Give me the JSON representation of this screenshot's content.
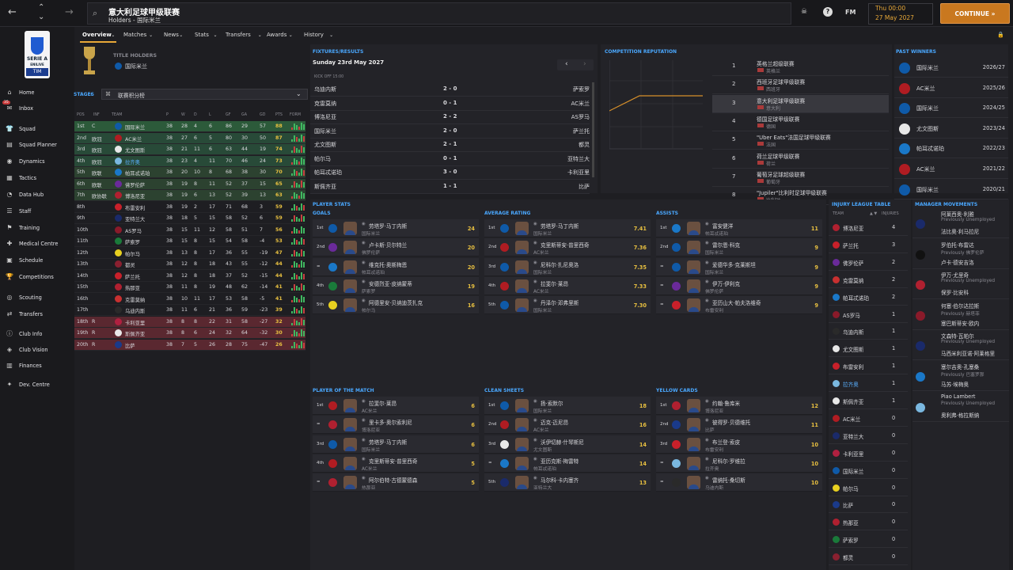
{
  "topbar": {
    "back_icon": "←",
    "forward_icon": "→",
    "up_icon": "⌃",
    "down_icon": "⌄",
    "title": "意大利足球甲级联赛",
    "subtitle": "Holders - 国际米兰",
    "fm_label": "FM",
    "date_line1": "Thu 00:00",
    "date_line2": "27 May 2027",
    "continue_label": "CONTINUE »"
  },
  "sidebar": {
    "logo_text": "SERIE A",
    "logo_sub": "ENILIVE",
    "logo_sponsor": "TIM",
    "items": [
      {
        "label": "Home",
        "icon": "⌂"
      },
      {
        "label": "Inbox",
        "icon": "✉",
        "badge": "35"
      },
      {
        "label": "Squad",
        "icon": "👕"
      },
      {
        "label": "Squad Planner",
        "icon": "▤"
      },
      {
        "label": "Dynamics",
        "icon": "◉"
      },
      {
        "label": "Tactics",
        "icon": "▦"
      },
      {
        "label": "Data Hub",
        "icon": "◔"
      },
      {
        "label": "Staff",
        "icon": "☰"
      },
      {
        "label": "Training",
        "icon": "⚑"
      },
      {
        "label": "Medical Centre",
        "icon": "✚"
      },
      {
        "label": "Schedule",
        "icon": "▣"
      },
      {
        "label": "Competitions",
        "icon": "🏆"
      },
      {
        "label": "Scouting",
        "icon": "◎"
      },
      {
        "label": "Transfers",
        "icon": "⇄"
      },
      {
        "label": "Club Info",
        "icon": "ⓘ"
      },
      {
        "label": "Club Vision",
        "icon": "◈"
      },
      {
        "label": "Finances",
        "icon": "▥"
      },
      {
        "label": "Dev. Centre",
        "icon": "✦"
      }
    ]
  },
  "tabs": [
    "Overview",
    "Matches",
    "News",
    "Stats",
    "Transfers",
    "Awards",
    "History"
  ],
  "holders": {
    "label": "TITLE HOLDERS",
    "team": "国际米兰"
  },
  "stages": {
    "label": "STAGES",
    "dropdown": "联赛积分榜"
  },
  "table": {
    "headers": [
      "POS",
      "INF",
      "",
      "TEAM",
      "P",
      "W",
      "D",
      "L",
      "GF",
      "GA",
      "GD",
      "PTS",
      "FORM"
    ],
    "rows": [
      [
        "1st",
        "C",
        "国际米兰",
        "38",
        "28",
        "4",
        "6",
        "86",
        "29",
        "57",
        "88",
        "#0f5aa8"
      ],
      [
        "2nd",
        "欧冠",
        "AC米兰",
        "38",
        "27",
        "6",
        "5",
        "80",
        "30",
        "50",
        "87",
        "#b01c22"
      ],
      [
        "3rd",
        "欧冠",
        "尤文图斯",
        "38",
        "21",
        "11",
        "6",
        "63",
        "44",
        "19",
        "74",
        "#e8e8e8"
      ],
      [
        "4th",
        "欧冠",
        "拉齐奥",
        "38",
        "23",
        "4",
        "11",
        "70",
        "46",
        "24",
        "73",
        "#7ab8e0"
      ],
      [
        "5th",
        "欧联",
        "帕耳忒诺珀",
        "38",
        "20",
        "10",
        "8",
        "68",
        "38",
        "30",
        "70",
        "#1a78c8"
      ],
      [
        "6th",
        "欧联",
        "佛罗伦萨",
        "38",
        "19",
        "8",
        "11",
        "52",
        "37",
        "15",
        "65",
        "#6a2a9a"
      ],
      [
        "7th",
        "欧协联",
        "博洛尼亚",
        "38",
        "19",
        "6",
        "13",
        "52",
        "39",
        "13",
        "63",
        "#b02030"
      ],
      [
        "8th",
        "",
        "布雷安利",
        "38",
        "19",
        "2",
        "17",
        "71",
        "68",
        "3",
        "59",
        "#c8202a"
      ],
      [
        "9th",
        "",
        "亚特兰大",
        "38",
        "18",
        "5",
        "15",
        "58",
        "52",
        "6",
        "59",
        "#1a2a6a"
      ],
      [
        "10th",
        "",
        "AS罗马",
        "38",
        "15",
        "11",
        "12",
        "58",
        "51",
        "7",
        "56",
        "#8a1a2a"
      ],
      [
        "11th",
        "",
        "萨索罗",
        "38",
        "15",
        "8",
        "15",
        "54",
        "58",
        "-4",
        "53",
        "#1a7a3a"
      ],
      [
        "12th",
        "",
        "帕尔马",
        "38",
        "13",
        "8",
        "17",
        "36",
        "55",
        "-19",
        "47",
        "#e8d020"
      ],
      [
        "13th",
        "",
        "都灵",
        "38",
        "12",
        "8",
        "18",
        "43",
        "55",
        "-12",
        "44",
        "#8a2030"
      ],
      [
        "14th",
        "",
        "萨兰托",
        "38",
        "12",
        "8",
        "18",
        "37",
        "52",
        "-15",
        "44",
        "#c8202a"
      ],
      [
        "15th",
        "",
        "热那亚",
        "38",
        "11",
        "8",
        "19",
        "48",
        "62",
        "-14",
        "41",
        "#b02030"
      ],
      [
        "16th",
        "",
        "克雷莫纳",
        "38",
        "10",
        "11",
        "17",
        "53",
        "58",
        "-5",
        "41",
        "#c83030"
      ],
      [
        "17th",
        "",
        "乌迪内斯",
        "38",
        "11",
        "6",
        "21",
        "36",
        "59",
        "-23",
        "39",
        "#2a2a2a"
      ],
      [
        "18th",
        "R",
        "卡利亚里",
        "38",
        "8",
        "8",
        "22",
        "31",
        "58",
        "-27",
        "32",
        "#b02040"
      ],
      [
        "19th",
        "R",
        "斯佩齐亚",
        "38",
        "8",
        "6",
        "24",
        "32",
        "64",
        "-32",
        "30",
        "#e8e8e8"
      ],
      [
        "20th",
        "R",
        "比萨",
        "38",
        "7",
        "5",
        "26",
        "28",
        "75",
        "-47",
        "26",
        "#1a3a8a"
      ]
    ]
  },
  "fixtures": {
    "label": "FIXTURES/RESULTS",
    "date": "Sunday 23rd May 2027",
    "kickoff": "KICK OFF 15:00",
    "rows": [
      [
        "乌迪内斯",
        "2 - 0",
        "萨索罗"
      ],
      [
        "克雷莫纳",
        "0 - 1",
        "AC米兰"
      ],
      [
        "博洛尼亚",
        "2 - 2",
        "AS罗马"
      ],
      [
        "国际米兰",
        "2 - 0",
        "萨兰托"
      ],
      [
        "尤文图斯",
        "2 - 1",
        "都灵"
      ],
      [
        "帕尔马",
        "0 - 1",
        "亚特兰大"
      ],
      [
        "帕耳忒诺珀",
        "3 - 0",
        "卡利亚里"
      ],
      [
        "斯佩齐亚",
        "1 - 1",
        "比萨"
      ]
    ]
  },
  "reputation": {
    "label": "COMPETITION REPUTATION",
    "rows": [
      [
        "1",
        "英格兰超级联赛",
        "英格兰"
      ],
      [
        "2",
        "西班牙足球甲级联赛",
        "西班牙"
      ],
      [
        "3",
        "意大利足球甲级联赛",
        "意大利"
      ],
      [
        "4",
        "德国足球甲级联赛",
        "德国"
      ],
      [
        "5",
        "\"Uber Eats\"法国足球甲级联赛",
        "法国"
      ],
      [
        "6",
        "荷兰足球甲级联赛",
        "荷兰"
      ],
      [
        "7",
        "葡萄牙足球超级联赛",
        "葡萄牙"
      ],
      [
        "8",
        "\"Jupiler\"比利时足球甲级联赛",
        "比利时"
      ]
    ]
  },
  "past_winners": {
    "label": "PAST WINNERS",
    "rows": [
      [
        "国际米兰",
        "2026/27",
        "#0f5aa8"
      ],
      [
        "AC米兰",
        "2025/26",
        "#b01c22"
      ],
      [
        "国际米兰",
        "2024/25",
        "#0f5aa8"
      ],
      [
        "尤文图斯",
        "2023/24",
        "#e8e8e8"
      ],
      [
        "帕耳忒诺珀",
        "2022/23",
        "#1a78c8"
      ],
      [
        "AC米兰",
        "2021/22",
        "#b01c22"
      ],
      [
        "国际米兰",
        "2020/21",
        "#0f5aa8"
      ]
    ]
  },
  "player_stats_label": "PLAYER STATS",
  "goals": {
    "label": "GOALS",
    "rows": [
      [
        "1st",
        "劳塔罗·马丁内斯",
        "国际米兰",
        "24",
        "#0f5aa8"
      ],
      [
        "2nd",
        "卢卡斯·贝尔特兰",
        "佛罗伦萨",
        "20",
        "#6a2a9a"
      ],
      [
        "=",
        "维克托·奥斯梅恩",
        "帕耳忒诺珀",
        "20",
        "#1a78c8"
      ],
      [
        "4th",
        "安德烈亚·皮纳蒙蒂",
        "萨索罗",
        "19",
        "#1a7a3a"
      ],
      [
        "5th",
        "阿德里安·贝纳迪茨扎克",
        "帕尔马",
        "16",
        "#e8d020"
      ]
    ]
  },
  "avg_rating": {
    "label": "AVERAGE RATING",
    "rows": [
      [
        "1st",
        "劳塔罗·马丁内斯",
        "国际米兰",
        "7.41",
        "#0f5aa8"
      ],
      [
        "2nd",
        "克里斯蒂安·普里西奇",
        "AC米兰",
        "7.36",
        "#b01c22"
      ],
      [
        "3rd",
        "尼科尔·扎尼奥洛",
        "国际米兰",
        "7.35",
        "#0f5aa8"
      ],
      [
        "4th",
        "拉斐尔·莱昂",
        "AC米兰",
        "7.33",
        "#b01c22"
      ],
      [
        "5th",
        "丹泽尔·邓弗里斯",
        "国际米兰",
        "7.30",
        "#0f5aa8"
      ]
    ]
  },
  "assists": {
    "label": "ASSISTS",
    "rows": [
      [
        "1st",
        "富安健洋",
        "帕耳忒诺珀",
        "11",
        "#1a78c8"
      ],
      [
        "2nd",
        "雷尔恩·科克",
        "国际米兰",
        "9",
        "#0f5aa8"
      ],
      [
        "=",
        "爱德华多·克莱斯坦",
        "国际米兰",
        "9",
        "#0f5aa8"
      ],
      [
        "=",
        "伊万·伊利克",
        "佛罗伦萨",
        "9",
        "#6a2a9a"
      ],
      [
        "=",
        "亚历山大·帕夫洛维奇",
        "布雷安利",
        "9",
        "#c8202a"
      ]
    ]
  },
  "potm": {
    "label": "PLAYER OF THE MATCH",
    "rows": [
      [
        "1st",
        "拉斐尔·莱昂",
        "AC米兰",
        "6",
        "#b01c22"
      ],
      [
        "=",
        "里卡多·奥尔索利尼",
        "博洛尼亚",
        "6",
        "#b02030"
      ],
      [
        "3rd",
        "劳塔罗·马丁内斯",
        "国际米兰",
        "6",
        "#0f5aa8"
      ],
      [
        "4th",
        "克里斯蒂安·普里西奇",
        "AC米兰",
        "5",
        "#b01c22"
      ],
      [
        "=",
        "阿尔伯特·古德蒙德森",
        "热那亚",
        "5",
        "#b02030"
      ]
    ]
  },
  "clean_sheets": {
    "label": "CLEAN SHEETS",
    "rows": [
      [
        "1st",
        "扬·索默尔",
        "国际米兰",
        "18",
        "#0f5aa8"
      ],
      [
        "2nd",
        "迈克·迈尼昂",
        "AC米兰",
        "16",
        "#b01c22"
      ],
      [
        "3rd",
        "沃伊切赫·什琴斯尼",
        "尤文图斯",
        "14",
        "#e8e8e8"
      ],
      [
        "=",
        "亚历克斯·梅雷特",
        "帕耳忒诺珀",
        "14",
        "#1a78c8"
      ],
      [
        "5th",
        "马尔科·卡内塞齐",
        "亚特兰大",
        "13",
        "#1a2a6a"
      ]
    ]
  },
  "yellow_cards": {
    "label": "YELLOW CARDS",
    "rows": [
      [
        "1st",
        "约翰·鲁库米",
        "博洛尼亚",
        "12",
        "#b02030"
      ],
      [
        "2nd",
        "彼得罗·贝德维托",
        "比萨",
        "11",
        "#1a3a8a"
      ],
      [
        "3rd",
        "布兰登·索皮",
        "布雷安利",
        "10",
        "#c8202a"
      ],
      [
        "=",
        "尼科尔·罗维拉",
        "拉齐奥",
        "10",
        "#7ab8e0"
      ],
      [
        "=",
        "雷纳托·桑切斯",
        "乌迪内斯",
        "10",
        "#2a2a2a"
      ]
    ]
  },
  "injury": {
    "label": "INJURY LEAGUE TABLE",
    "col_team": "TEAM",
    "col_inj": "INJURIES",
    "rows": [
      [
        "博洛尼亚",
        "4",
        "#b02030"
      ],
      [
        "萨兰托",
        "3",
        "#c8202a"
      ],
      [
        "佛罗伦萨",
        "2",
        "#6a2a9a"
      ],
      [
        "克雷莫纳",
        "2",
        "#c83030"
      ],
      [
        "帕耳忒诺珀",
        "2",
        "#1a78c8"
      ],
      [
        "AS罗马",
        "1",
        "#8a1a2a"
      ],
      [
        "乌迪内斯",
        "1",
        "#2a2a2a"
      ],
      [
        "尤文图斯",
        "1",
        "#e8e8e8"
      ],
      [
        "布雷安利",
        "1",
        "#c8202a"
      ],
      [
        "拉齐奥",
        "1",
        "#7ab8e0"
      ],
      [
        "斯佩齐亚",
        "1",
        "#e8e8e8"
      ],
      [
        "AC米兰",
        "0",
        "#b01c22"
      ],
      [
        "亚特兰大",
        "0",
        "#1a2a6a"
      ],
      [
        "卡利亚里",
        "0",
        "#b02040"
      ],
      [
        "国际米兰",
        "0",
        "#0f5aa8"
      ],
      [
        "帕尔马",
        "0",
        "#e8d020"
      ],
      [
        "比萨",
        "0",
        "#1a3a8a"
      ],
      [
        "热那亚",
        "0",
        "#b02030"
      ],
      [
        "萨索罗",
        "0",
        "#1a7a3a"
      ],
      [
        "都灵",
        "0",
        "#8a2030"
      ]
    ]
  },
  "manager_moves": {
    "label": "MANAGER MOVEMENTS",
    "rows": [
      [
        "阿莱西奥·利雅",
        "Previously Unemployed",
        "法比奥·利马拉尼"
      ],
      [
        "罗伯托·布雷达",
        "Previously 佛罗伦萨",
        "卢卡·德安吉洛"
      ],
      [
        "伊万·尤里奇",
        "Previously Unemployed",
        "保罗·比安科"
      ],
      [
        "何塞·伯尔达拉斯",
        "Previously 赫塔菲",
        "塞巴斯蒂安·欧内"
      ],
      [
        "文森特·瓦帕尔",
        "Previously Unemployed",
        "马西米利亚诺·阿莱格里"
      ],
      [
        "塞尔吉奥·孔塞桑",
        "Previously 巴塞罗那",
        "马苏·埃梅奥"
      ],
      [
        "Piao Lambert",
        "Previously Unemployed",
        "奥利弗·格拉斯纳"
      ]
    ]
  }
}
